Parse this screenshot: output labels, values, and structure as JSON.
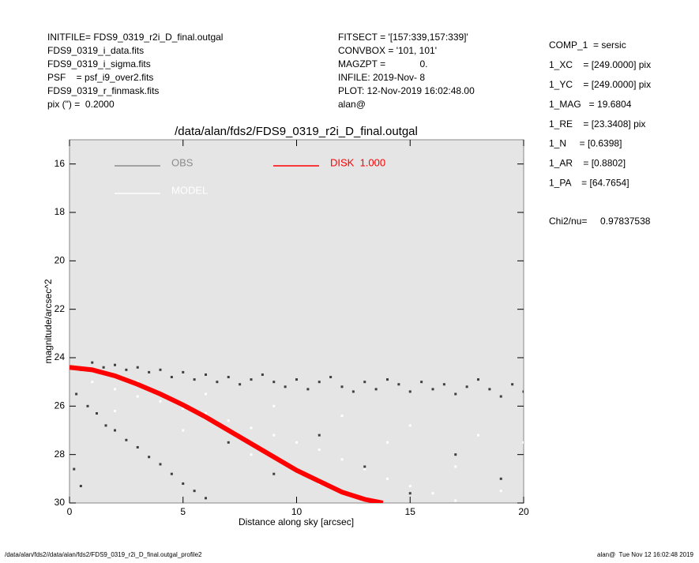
{
  "chart_data": {
    "type": "scatter",
    "title": "/data/alan/fds2/FDS9_0319_r2i_D_final.outgal",
    "x_label": "Distance along sky [arcsec]",
    "y_label": "magnitude/arcsec^2",
    "xlim": [
      0,
      20
    ],
    "ylim": [
      30,
      15
    ],
    "xticks": [
      0,
      5,
      10,
      15,
      20
    ],
    "yticks": [
      16,
      18,
      20,
      22,
      24,
      26,
      28,
      30
    ],
    "legend": "upper left",
    "background": "#e5e5e5",
    "annotations": {
      "left": [
        "INITFILE= FDS9_0319_r2i_D_final.outgal",
        "FDS9_0319_i_data.fits",
        "FDS9_0319_i_sigma.fits",
        "PSF    = psf_i9_over2.fits",
        "FDS9_0319_r_finmask.fits",
        "pix (\") =  0.2000"
      ],
      "middle": [
        "FITSECT = '[157:339,157:339]'",
        "CONVBOX = '101, 101'",
        "MAGZPT =             0.",
        "INFILE: 2019-Nov- 8",
        "PLOT: 12-Nov-2019 16:02:48.00",
        "alan@"
      ],
      "right": [
        "COMP_1  = sersic",
        "1_XC    = [249.0000] pix",
        "1_YC    = [249.0000] pix",
        "1_MAG   = 19.6804",
        "1_RE    = [23.3408] pix",
        "1_N     = [0.6398]",
        "1_AR    = [0.8802]",
        "1_PA    = [64.7654]"
      ],
      "fit": "Chi2/nu=     0.97837538",
      "footer_left": "/data/alan/fds2//data/alan/fds2/FDS9_0319_r2i_D_final.outgal_profile2",
      "footer_right": "alan@  Tue Nov 12 16:02:48 2019"
    },
    "series": [
      {
        "name": "OBS",
        "color": "#3f3f3f",
        "legend_color": "#8c8c8c",
        "style": "points",
        "x": [
          0.5,
          1,
          1.5,
          2,
          2.5,
          3,
          3.5,
          4,
          4.5,
          5,
          5.5,
          6,
          6.5,
          7,
          7.5,
          8,
          8.5,
          9,
          9.5,
          10,
          10.5,
          11,
          11.5,
          12,
          12.5,
          13,
          13.5,
          14,
          14.5,
          15,
          15.5,
          16,
          16.5,
          17,
          17.5,
          18,
          18.5,
          19,
          19.5,
          20,
          0.3,
          0.8,
          1.2,
          1.6,
          2,
          2.5,
          3,
          3.5,
          4,
          4.5,
          5,
          5.5,
          6,
          7,
          9,
          11,
          13,
          15,
          17,
          19,
          0.2,
          0.5
        ],
        "values": [
          24.5,
          24.2,
          24.4,
          24.3,
          24.5,
          24.4,
          24.6,
          24.5,
          24.8,
          24.6,
          24.9,
          24.7,
          25.0,
          24.8,
          25.1,
          24.9,
          24.7,
          25.0,
          25.2,
          24.9,
          25.3,
          25.0,
          24.8,
          25.2,
          25.4,
          25.0,
          25.3,
          24.9,
          25.1,
          25.4,
          25.0,
          25.3,
          25.1,
          25.5,
          25.2,
          24.9,
          25.3,
          25.6,
          25.1,
          25.4,
          25.5,
          26.0,
          26.3,
          26.8,
          27.0,
          27.4,
          27.7,
          28.1,
          28.4,
          28.8,
          29.2,
          29.5,
          29.8,
          27.5,
          28.8,
          27.2,
          28.5,
          29.6,
          28.0,
          29.0,
          28.6,
          29.3
        ]
      },
      {
        "name": "MODEL",
        "color": "#ffffff",
        "legend_color": "#ffffff",
        "style": "points",
        "x": [
          1,
          2,
          3,
          4,
          5,
          6,
          7,
          8,
          9,
          10,
          11,
          12,
          13,
          14,
          15,
          16,
          17,
          3,
          6,
          9,
          12,
          15,
          18,
          20,
          8,
          11,
          14,
          17,
          19,
          5,
          2
        ],
        "values": [
          25.0,
          25.3,
          25.6,
          25.8,
          26.1,
          26.3,
          26.6,
          26.9,
          27.2,
          27.5,
          27.8,
          28.2,
          28.6,
          29.0,
          29.3,
          29.6,
          29.9,
          25.0,
          25.5,
          26.0,
          26.4,
          26.8,
          27.2,
          27.5,
          28.0,
          29.2,
          27.5,
          28.5,
          29.5,
          27.0,
          26.2
        ]
      },
      {
        "name": "DISK  1.000",
        "color": "#ff0000",
        "legend_color": "#ff0000",
        "style": "line",
        "x": [
          0,
          1,
          2,
          3,
          4,
          5,
          6,
          7,
          8,
          9,
          10,
          11,
          12,
          13,
          13.8
        ],
        "values": [
          24.4,
          24.5,
          24.75,
          25.1,
          25.5,
          25.95,
          26.45,
          27.0,
          27.55,
          28.1,
          28.65,
          29.1,
          29.55,
          29.85,
          30.0
        ]
      }
    ]
  }
}
